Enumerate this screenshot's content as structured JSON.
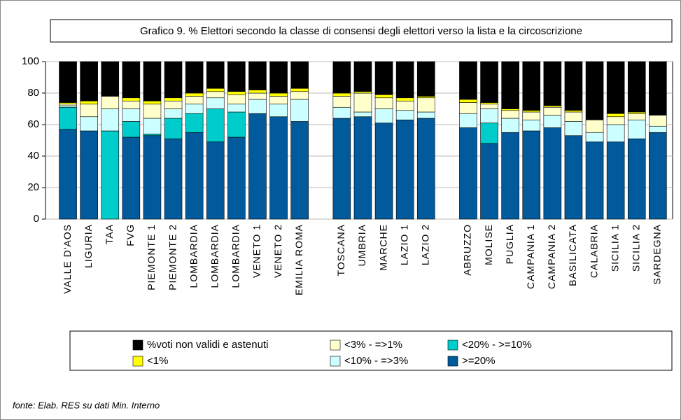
{
  "chart_data": {
    "type": "stacked_bar",
    "title": "Grafico 9. % Elettori secondo la classe di consensi degli elettori verso la lista e la circoscrizione",
    "note": "fonte: Elab. RES su dati Min. Interno",
    "categories": [
      "VALLE D'AOS",
      "LIGURIA",
      "TAA",
      "FVG",
      "PIEMONTE 1",
      "PIEMONTE 2",
      "LOMBARDIA",
      "LOMBARDIA",
      "LOMBARDIA",
      "VENETO 1",
      "VENETO 2",
      "EMILIA ROMA",
      null,
      "TOSCANA",
      "UMBRIA",
      "MARCHE",
      "LAZIO 1",
      "LAZIO 2",
      null,
      "ABRUZZO",
      "MOLISE",
      "PUGLIA",
      "CAMPANIA 1",
      "CAMPANIA 2",
      "BASILICATA",
      "CALABRIA",
      "SICILIA 1",
      "SICILIA 2",
      "SARDEGNA"
    ],
    "series": [
      {
        "name": "%voti non validi e astenuti",
        "color": "#000000",
        "values": [
          26,
          25,
          22,
          23,
          25,
          23,
          20,
          17,
          19,
          18,
          20,
          17,
          null,
          20,
          19,
          21,
          23,
          22,
          null,
          24,
          26,
          30,
          31,
          28,
          31,
          37,
          33,
          32,
          34
        ]
      },
      {
        "name": "<1%",
        "color": "#ffff00",
        "values": [
          1,
          2,
          0,
          2,
          2,
          2,
          2,
          2,
          2,
          2,
          2,
          2,
          null,
          2,
          1,
          2,
          2,
          1,
          null,
          2,
          1,
          1,
          1,
          1,
          1,
          0,
          2,
          1,
          0
        ]
      },
      {
        "name": "<3% - =>1%",
        "color": "#ffffcc",
        "values": [
          1,
          8,
          8,
          5,
          9,
          5,
          5,
          4,
          6,
          4,
          5,
          5,
          null,
          7,
          12,
          7,
          6,
          9,
          null,
          7,
          3,
          5,
          5,
          5,
          6,
          8,
          5,
          4,
          7
        ]
      },
      {
        "name": "<10% - =>3%",
        "color": "#ccffff",
        "values": [
          1,
          9,
          14,
          8,
          10,
          6,
          6,
          7,
          5,
          9,
          8,
          14,
          null,
          7,
          3,
          9,
          6,
          4,
          null,
          9,
          9,
          9,
          7,
          8,
          9,
          6,
          11,
          12,
          4
        ]
      },
      {
        "name": "<20% - >=10%",
        "color": "#00cccc",
        "values": [
          14,
          0,
          56,
          10,
          1,
          13,
          12,
          21,
          16,
          0,
          0,
          0,
          null,
          0,
          0,
          0,
          0,
          0,
          null,
          0,
          13,
          0,
          0,
          0,
          0,
          0,
          0,
          0,
          0
        ]
      },
      {
        "name": ">=20%",
        "color": "#005a9c",
        "values": [
          57,
          56,
          0,
          52,
          53,
          51,
          55,
          49,
          52,
          67,
          65,
          62,
          null,
          64,
          65,
          61,
          63,
          64,
          null,
          58,
          48,
          55,
          56,
          58,
          53,
          49,
          49,
          51,
          55
        ]
      }
    ],
    "ylim": [
      0,
      100
    ],
    "yticks": [
      0,
      20,
      40,
      60,
      80,
      100
    ],
    "grid": true
  }
}
